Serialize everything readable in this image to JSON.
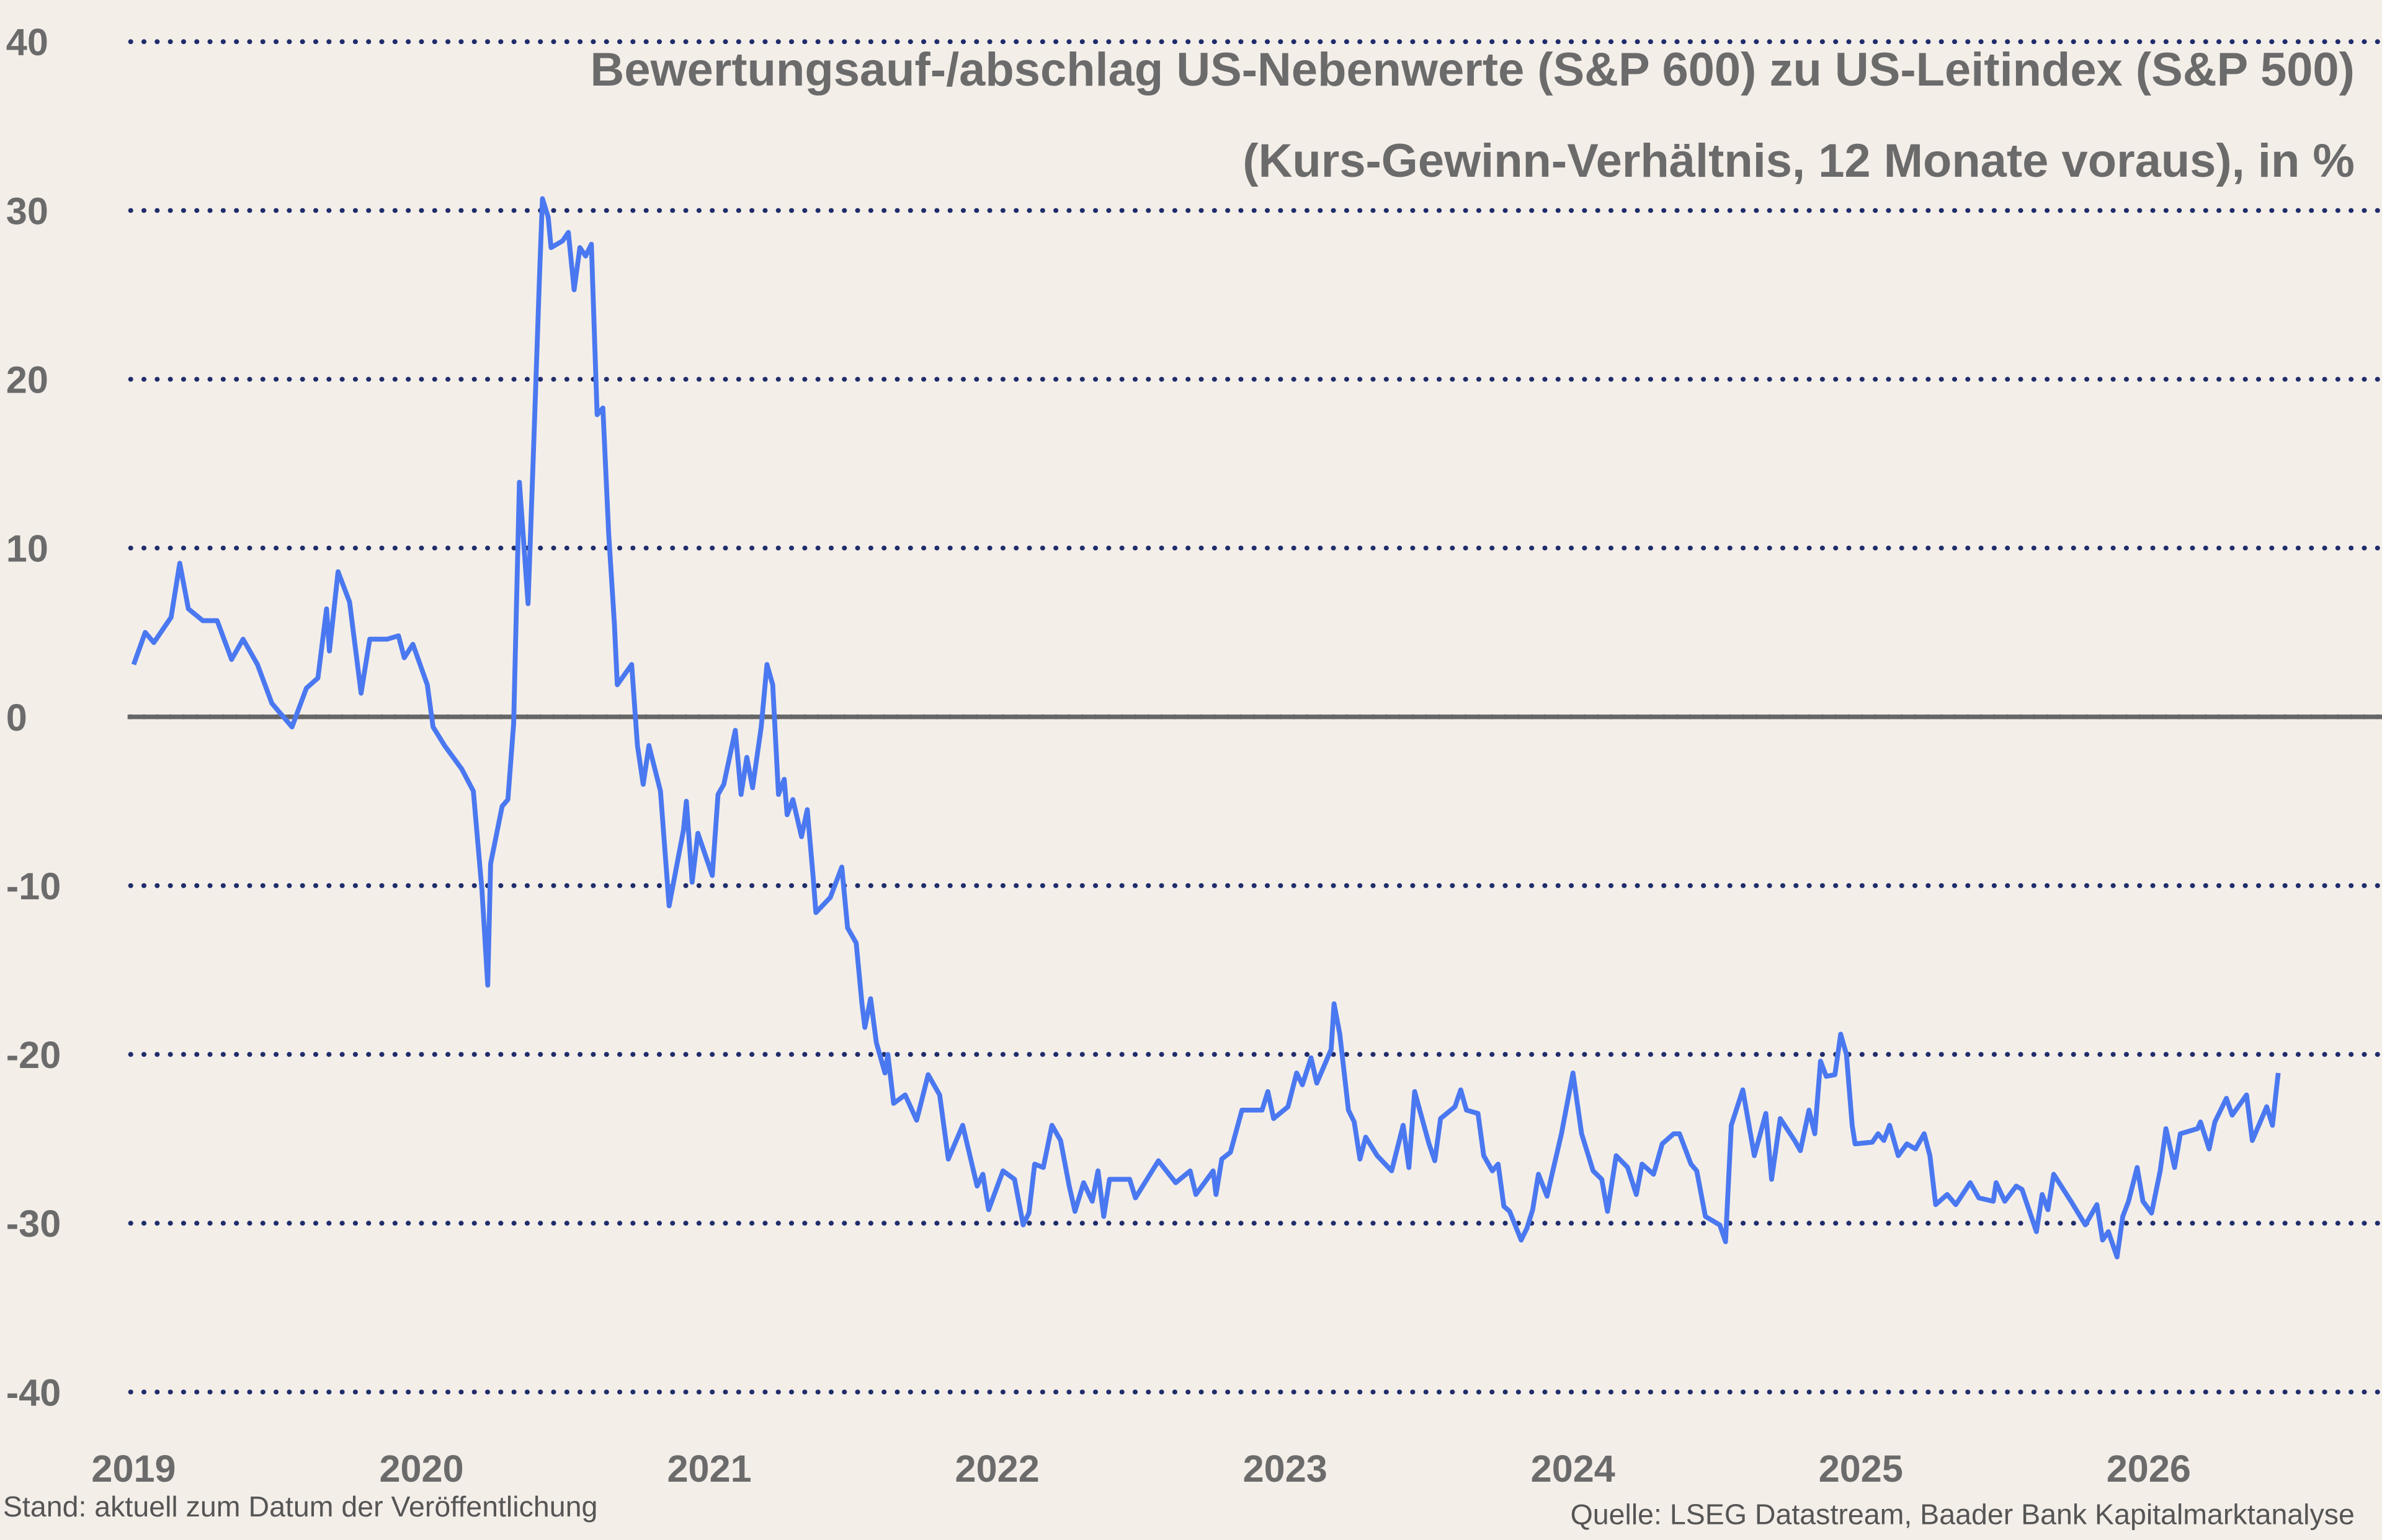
{
  "chart_data": {
    "type": "line",
    "title": "Bewertungsauf-/abschlag US-Nebenwerte (S&P 600) zu US-Leitindex (S&P 500)",
    "subtitle": "(Kurs-Gewinn-Verhältnis, 12 Monate voraus), in %",
    "note_left": "Stand: aktuell zum Datum der Veröffentlichung",
    "source": "Quelle: LSEG Datastream, Baader Bank Kapitalmarktanalyse",
    "xlim": [
      2019,
      2026.8
    ],
    "xticks": [
      2019,
      2020,
      2021,
      2022,
      2023,
      2024,
      2025,
      2026
    ],
    "ylim": [
      -40,
      40
    ],
    "yticks": [
      -40,
      -30,
      -20,
      -10,
      0,
      10,
      20,
      30,
      40
    ],
    "grid": true,
    "x": [
      2019.0,
      2019.04,
      2019.07,
      2019.13,
      2019.16,
      2019.19,
      2019.24,
      2019.29,
      2019.34,
      2019.38,
      2019.43,
      2019.48,
      2019.55,
      2019.6,
      2019.64,
      2019.67,
      2019.68,
      2019.71,
      2019.75,
      2019.79,
      2019.82,
      2019.88,
      2019.92,
      2019.94,
      2019.97,
      2020.02,
      2020.04,
      2020.08,
      2020.14,
      2020.18,
      2020.21,
      2020.23,
      2020.24,
      2020.28,
      2020.3,
      2020.32,
      2020.34,
      2020.37,
      2020.39,
      2020.41,
      2020.42,
      2020.44,
      2020.45,
      2020.49,
      2020.51,
      2020.53,
      2020.55,
      2020.57,
      2020.59,
      2020.61,
      2020.63,
      2020.65,
      2020.67,
      2020.68,
      2020.73,
      2020.75,
      2020.77,
      2020.79,
      2020.83,
      2020.86,
      2020.91,
      2020.92,
      2020.94,
      2020.96,
      2021.01,
      2021.03,
      2021.05,
      2021.09,
      2021.11,
      2021.13,
      2021.15,
      2021.18,
      2021.2,
      2021.22,
      2021.24,
      2021.26,
      2021.27,
      2021.29,
      2021.32,
      2021.34,
      2021.36,
      2021.37,
      2021.42,
      2021.46,
      2021.48,
      2021.51,
      2021.53,
      2021.54,
      2021.56,
      2021.58,
      2021.61,
      2021.62,
      2021.64,
      2021.68,
      2021.72,
      2021.76,
      2021.8,
      2021.83,
      2021.88,
      2021.93,
      2021.95,
      2021.97,
      2022.02,
      2022.06,
      2022.09,
      2022.11,
      2022.13,
      2022.16,
      2022.19,
      2022.22,
      2022.25,
      2022.27,
      2022.3,
      2022.33,
      2022.35,
      2022.37,
      2022.39,
      2022.46,
      2022.48,
      2022.56,
      2022.62,
      2022.67,
      2022.69,
      2022.75,
      2022.76,
      2022.78,
      2022.81,
      2022.85,
      2022.92,
      2022.94,
      2022.96,
      2023.01,
      2023.04,
      2023.06,
      2023.09,
      2023.11,
      2023.16,
      2023.17,
      2023.19,
      2023.22,
      2023.24,
      2023.26,
      2023.28,
      2023.32,
      2023.37,
      2023.41,
      2023.43,
      2023.45,
      2023.5,
      2023.52,
      2023.54,
      2023.59,
      2023.61,
      2023.63,
      2023.67,
      2023.69,
      2023.72,
      2023.74,
      2023.76,
      2023.78,
      2023.82,
      2023.84,
      2023.86,
      2023.88,
      2023.91,
      2023.93,
      2023.96,
      2024.0,
      2024.03,
      2024.07,
      2024.1,
      2024.12,
      2024.15,
      2024.19,
      2024.22,
      2024.24,
      2024.28,
      2024.31,
      2024.35,
      2024.37,
      2024.41,
      2024.43,
      2024.46,
      2024.51,
      2024.53,
      2024.55,
      2024.59,
      2024.63,
      2024.67,
      2024.69,
      2024.72,
      2024.77,
      2024.79,
      2024.82,
      2024.84,
      2024.86,
      2024.88,
      2024.91,
      2024.93,
      2024.95,
      2024.97,
      2024.98,
      2025.04,
      2025.06,
      2025.08,
      2025.1,
      2025.13,
      2025.16,
      2025.19,
      2025.22,
      2025.24,
      2025.26,
      2025.3,
      2025.33,
      2025.38,
      2025.41,
      2025.46,
      2025.47,
      2025.5,
      2025.54,
      2025.56,
      2025.61,
      2025.63,
      2025.65,
      2025.67,
      2025.73,
      2025.78,
      2025.82,
      2025.84,
      2025.86,
      2025.89,
      2025.91,
      2025.93,
      2025.96,
      2025.98,
      2026.01,
      2026.04,
      2026.06,
      2026.09,
      2026.11,
      2026.17,
      2026.18,
      2026.21,
      2026.23,
      2026.27,
      2026.29,
      2026.34,
      2026.36,
      2026.41,
      2026.43,
      2026.45
    ],
    "series": [
      {
        "color": "#4a78f0",
        "values": [
          3.1,
          5.0,
          4.4,
          5.9,
          9.1,
          6.4,
          5.7,
          5.7,
          3.4,
          4.6,
          3.1,
          0.8,
          -0.6,
          1.7,
          2.3,
          6.4,
          3.9,
          8.6,
          6.8,
          1.4,
          4.6,
          4.6,
          4.8,
          3.5,
          4.3,
          1.9,
          -0.6,
          -1.7,
          -3.1,
          -4.4,
          -10.3,
          -15.9,
          -8.7,
          -5.3,
          -4.9,
          -0.4,
          13.9,
          6.7,
          16.3,
          26.2,
          30.7,
          29.6,
          27.8,
          28.2,
          28.7,
          25.3,
          27.8,
          27.3,
          28.0,
          17.9,
          18.3,
          10.9,
          5.5,
          1.9,
          3.1,
          -1.7,
          -4.0,
          -1.7,
          -4.4,
          -11.2,
          -6.7,
          -5.0,
          -9.8,
          -6.9,
          -9.4,
          -4.6,
          -4.0,
          -0.8,
          -4.6,
          -2.4,
          -4.2,
          -0.6,
          3.1,
          1.9,
          -4.6,
          -3.7,
          -5.8,
          -4.9,
          -7.1,
          -5.5,
          -9.4,
          -11.6,
          -10.7,
          -8.9,
          -12.5,
          -13.4,
          -17.0,
          -18.4,
          -16.7,
          -19.3,
          -21.1,
          -20.0,
          -22.9,
          -22.4,
          -23.9,
          -21.2,
          -22.4,
          -26.2,
          -24.2,
          -27.8,
          -27.1,
          -29.2,
          -26.9,
          -27.4,
          -30.1,
          -29.4,
          -26.5,
          -26.7,
          -24.2,
          -25.1,
          -27.8,
          -29.3,
          -27.6,
          -28.7,
          -26.9,
          -29.6,
          -27.4,
          -27.4,
          -28.5,
          -26.3,
          -27.6,
          -26.9,
          -28.3,
          -26.9,
          -28.3,
          -26.2,
          -25.8,
          -23.3,
          -23.3,
          -22.2,
          -23.8,
          -23.1,
          -21.1,
          -21.8,
          -20.2,
          -21.7,
          -19.7,
          -17.0,
          -18.8,
          -23.3,
          -24.0,
          -26.2,
          -24.9,
          -26.0,
          -26.9,
          -24.2,
          -26.7,
          -22.2,
          -25.3,
          -26.3,
          -23.8,
          -23.1,
          -22.1,
          -23.3,
          -23.5,
          -26.0,
          -26.9,
          -26.5,
          -29.0,
          -29.3,
          -31.0,
          -30.3,
          -29.2,
          -27.1,
          -28.4,
          -26.9,
          -24.7,
          -21.1,
          -24.7,
          -26.9,
          -27.4,
          -29.3,
          -26.0,
          -26.7,
          -28.3,
          -26.5,
          -27.1,
          -25.3,
          -24.7,
          -24.7,
          -26.5,
          -26.9,
          -29.6,
          -30.1,
          -31.1,
          -24.2,
          -22.1,
          -26.0,
          -23.5,
          -27.4,
          -23.8,
          -25.1,
          -25.7,
          -23.3,
          -24.7,
          -20.4,
          -21.3,
          -21.2,
          -18.8,
          -20.0,
          -24.2,
          -25.3,
          -25.2,
          -24.7,
          -25.1,
          -24.2,
          -26.0,
          -25.3,
          -25.6,
          -24.7,
          -26.0,
          -28.9,
          -28.3,
          -28.9,
          -27.6,
          -28.5,
          -28.7,
          -27.6,
          -28.7,
          -27.8,
          -28.0,
          -30.5,
          -28.3,
          -29.2,
          -27.1,
          -28.7,
          -30.1,
          -28.9,
          -31.0,
          -30.5,
          -32.0,
          -29.6,
          -28.7,
          -26.7,
          -28.7,
          -29.4,
          -26.9,
          -24.4,
          -26.7,
          -24.7,
          -24.4,
          -24.0,
          -25.6,
          -24.0,
          -22.6,
          -23.6,
          -22.4,
          -25.1,
          -23.1,
          -24.2,
          -21.1
        ]
      }
    ]
  }
}
